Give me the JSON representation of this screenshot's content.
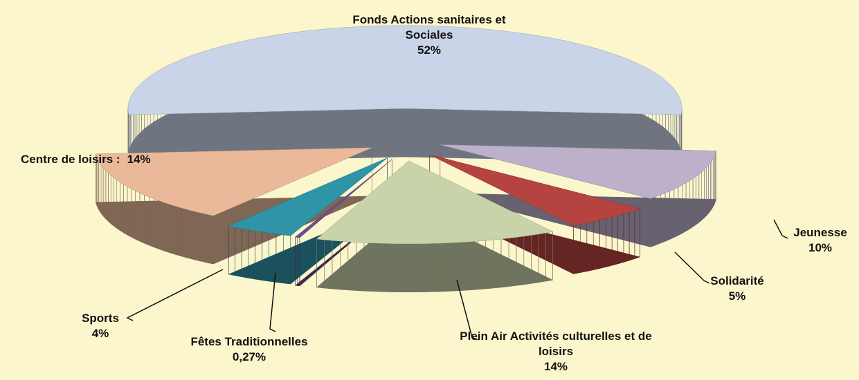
{
  "chart_data": {
    "type": "pie",
    "categories": [
      "Fonds Actions sanitaires et Sociales",
      "Jeunesse",
      "Solidarité",
      "Plein Air Activités culturelles et de loisirs",
      "Fêtes Traditionnelles",
      "Sports",
      "Centre de loisirs :"
    ],
    "values": [
      52,
      10,
      5,
      14,
      0.27,
      4,
      14
    ],
    "value_labels": [
      "52%",
      "10%",
      "5%",
      "14%",
      "0,27%",
      "4%",
      "14%"
    ],
    "colors": [
      "#c9d4e8",
      "#bcb0cb",
      "#b5433f",
      "#c9d3aa",
      "#6b4f8c",
      "#2f94a8",
      "#e9b999"
    ]
  }
}
